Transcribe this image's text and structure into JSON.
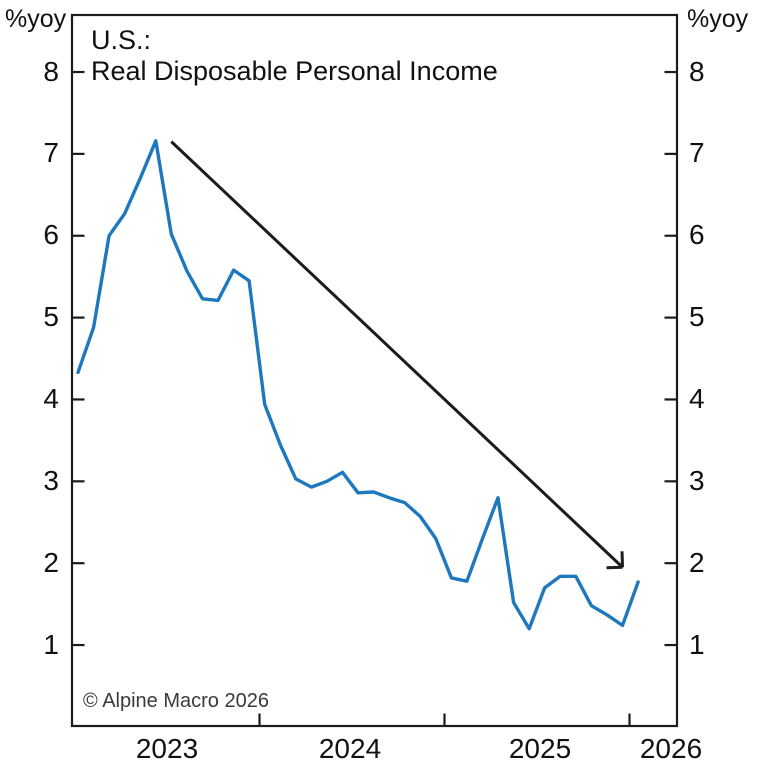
{
  "title": {
    "line1": "U.S.:",
    "line2": "Real Disposable Personal Income"
  },
  "footer": {
    "copyright": "© Alpine Macro 2026"
  },
  "chart_data": {
    "type": "line",
    "title": "U.S.: Real Disposable Personal Income",
    "ylabel": "%yoy",
    "ylabel_right": "%yoy",
    "frequency": "monthly",
    "ylim": [
      0,
      8.7
    ],
    "yticks": [
      1,
      2,
      3,
      4,
      5,
      6,
      7,
      8
    ],
    "xticklabels": [
      "2023",
      "2024",
      "2025",
      "2026"
    ],
    "x_boundary_ticks": [
      "2024-01",
      "2025-01",
      "2026-01"
    ],
    "grid": false,
    "legend": "none",
    "series_color": "#1d78be",
    "axis_color": "#1c1c1c",
    "x": [
      "2023-01",
      "2023-02",
      "2023-03",
      "2023-04",
      "2023-05",
      "2023-06",
      "2023-07",
      "2023-08",
      "2023-09",
      "2023-10",
      "2023-11",
      "2023-12",
      "2024-01",
      "2024-02",
      "2024-03",
      "2024-04",
      "2024-05",
      "2024-06",
      "2024-07",
      "2024-08",
      "2024-09",
      "2024-10",
      "2024-11",
      "2024-12",
      "2025-01",
      "2025-02",
      "2025-03",
      "2025-04",
      "2025-05",
      "2025-06",
      "2025-07",
      "2025-08",
      "2025-09",
      "2025-10",
      "2025-11",
      "2025-12",
      "2026-01"
    ],
    "values": [
      4.33,
      4.88,
      6.0,
      6.27,
      6.7,
      7.16,
      6.02,
      5.57,
      5.23,
      5.21,
      5.58,
      5.45,
      3.94,
      3.45,
      3.03,
      2.93,
      3.0,
      3.11,
      2.86,
      2.87,
      2.8,
      2.74,
      2.57,
      2.3,
      1.82,
      1.78,
      2.3,
      2.8,
      1.52,
      1.2,
      1.7,
      1.84,
      1.84,
      1.48,
      1.37,
      1.24,
      1.77
    ],
    "annotation_arrow": {
      "description": "downtrend arrow from the early-2023 peak toward end-2025",
      "from": {
        "month": "2023-07",
        "value": 7.15
      },
      "to": {
        "month": "2025-12",
        "value": 1.95
      },
      "color": "#1c1c1c"
    }
  }
}
